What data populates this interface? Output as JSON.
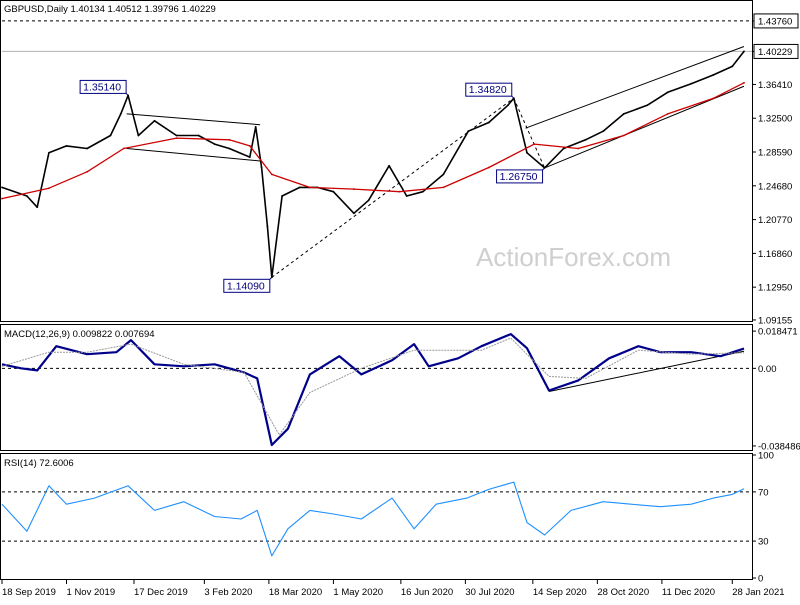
{
  "chart_data": {
    "type": "line",
    "main": {
      "header": "GBPUSD,Daily  1.40134 1.40512 1.39796 1.40229",
      "symbol": "GBPUSD",
      "timeframe": "Daily",
      "ohlc": [
        1.40134,
        1.40512,
        1.39796,
        1.40229
      ],
      "ylim": [
        1.0915,
        1.4595
      ],
      "y_ticks": [
        "1.43760",
        "1.40229",
        "1.36410",
        "1.32500",
        "1.28590",
        "1.24680",
        "1.20770",
        "1.16860",
        "1.12950",
        "1.09155"
      ],
      "current_price": "1.40229",
      "resistance_level": "1.43760",
      "series": [
        {
          "name": "",
          "color": "#000000",
          "x": [
            "2019-09-18",
            "2019-10-05",
            "2019-10-12",
            "2019-10-20",
            "2019-11-01",
            "2019-11-15",
            "2019-12-01",
            "2019-12-08",
            "2019-12-13",
            "2019-12-20",
            "2019-12-31",
            "2020-01-15",
            "2020-01-30",
            "2020-02-10",
            "2020-02-20",
            "2020-03-05",
            "2020-03-09",
            "2020-03-13",
            "2020-03-17",
            "2020-03-20",
            "2020-03-27",
            "2020-04-08",
            "2020-04-20",
            "2020-05-01",
            "2020-05-15",
            "2020-05-25",
            "2020-06-08",
            "2020-06-20",
            "2020-07-01",
            "2020-07-15",
            "2020-08-01",
            "2020-08-15",
            "2020-08-28",
            "2020-09-01",
            "2020-09-10",
            "2020-09-22",
            "2020-10-05",
            "2020-10-20",
            "2020-11-01",
            "2020-11-15",
            "2020-12-01",
            "2020-12-15",
            "2020-12-31",
            "2021-01-15",
            "2021-01-28",
            "2021-02-05"
          ],
          "y": [
            1.245,
            1.235,
            1.222,
            1.285,
            1.293,
            1.29,
            1.305,
            1.33,
            1.3514,
            1.305,
            1.322,
            1.305,
            1.305,
            1.295,
            1.29,
            1.28,
            1.315,
            1.268,
            1.2,
            1.1409,
            1.235,
            1.245,
            1.245,
            1.24,
            1.215,
            1.23,
            1.27,
            1.235,
            1.24,
            1.26,
            1.31,
            1.32,
            1.34,
            1.3482,
            1.285,
            1.2675,
            1.29,
            1.3,
            1.31,
            1.33,
            1.34,
            1.355,
            1.365,
            1.375,
            1.385,
            1.4023
          ]
        },
        {
          "name": "",
          "color": "#cc0000",
          "x": [
            "2019-09-18",
            "2019-10-20",
            "2019-11-15",
            "2019-12-10",
            "2020-01-15",
            "2020-02-20",
            "2020-03-05",
            "2020-03-20",
            "2020-04-15",
            "2020-05-15",
            "2020-06-15",
            "2020-07-15",
            "2020-08-15",
            "2020-09-15",
            "2020-10-15",
            "2020-11-15",
            "2020-12-15",
            "2021-01-15",
            "2021-02-05"
          ],
          "y": [
            1.232,
            1.244,
            1.263,
            1.29,
            1.302,
            1.3,
            1.293,
            1.26,
            1.245,
            1.243,
            1.24,
            1.245,
            1.268,
            1.295,
            1.29,
            1.305,
            1.33,
            1.348,
            1.366
          ]
        }
      ],
      "annotations": [
        {
          "text": "1.35140",
          "x": "2019-12-13",
          "y": 1.3514
        },
        {
          "text": "1.14090",
          "x": "2020-03-20",
          "y": 1.1409
        },
        {
          "text": "1.34820",
          "x": "2020-09-01",
          "y": 1.3482
        },
        {
          "text": "1.26750",
          "x": "2020-09-22",
          "y": 1.2675
        }
      ],
      "trendlines": [
        {
          "from": [
            "2019-12-12",
            1.33
          ],
          "to": [
            "2020-03-12",
            1.3175
          ]
        },
        {
          "from": [
            "2019-12-12",
            1.29
          ],
          "to": [
            "2020-03-12",
            1.2755
          ]
        },
        {
          "from": [
            "2020-03-20",
            1.1409
          ],
          "to": [
            "2020-09-01",
            1.3482
          ]
        },
        {
          "from": [
            "2020-09-01",
            1.3482
          ],
          "to": [
            "2020-09-22",
            1.2675
          ]
        },
        {
          "from": [
            "2020-09-09",
            1.3135
          ],
          "to": [
            "2021-02-05",
            1.408
          ]
        },
        {
          "from": [
            "2020-09-22",
            1.2675
          ],
          "to": [
            "2021-02-05",
            1.362
          ]
        }
      ]
    },
    "macd": {
      "header": "MACD(12,26,9) 0.009822 0.007694",
      "params": "12,26,9",
      "macd_value": 0.009822,
      "signal_value": 0.007694,
      "ylim": [
        -0.04,
        0.021
      ],
      "y_ticks": [
        "0.018471",
        "0.00",
        "-0.038486"
      ],
      "series": [
        {
          "name": "",
          "color": "#00008b",
          "x": [
            "2019-09-18",
            "2019-10-01",
            "2019-10-12",
            "2019-10-25",
            "2019-11-15",
            "2019-12-05",
            "2019-12-15",
            "2019-12-31",
            "2020-01-20",
            "2020-02-10",
            "2020-03-01",
            "2020-03-10",
            "2020-03-20",
            "2020-03-31",
            "2020-04-15",
            "2020-05-05",
            "2020-05-20",
            "2020-06-10",
            "2020-06-25",
            "2020-07-05",
            "2020-07-25",
            "2020-08-10",
            "2020-08-30",
            "2020-09-10",
            "2020-09-25",
            "2020-10-15",
            "2020-11-05",
            "2020-11-25",
            "2020-12-10",
            "2020-12-31",
            "2021-01-20",
            "2021-02-05"
          ],
          "y": [
            0.002,
            0.0,
            -0.001,
            0.011,
            0.007,
            0.008,
            0.014,
            0.002,
            0.001,
            0.002,
            -0.002,
            -0.005,
            -0.038,
            -0.03,
            -0.003,
            0.006,
            -0.003,
            0.004,
            0.012,
            0.001,
            0.005,
            0.011,
            0.017,
            0.01,
            -0.011,
            -0.006,
            0.005,
            0.011,
            0.008,
            0.008,
            0.006,
            0.0098
          ]
        },
        {
          "name": "",
          "color": "#999999",
          "x": [
            "2019-09-18",
            "2019-10-20",
            "2019-11-15",
            "2019-12-15",
            "2020-01-20",
            "2020-03-01",
            "2020-03-25",
            "2020-04-15",
            "2020-05-20",
            "2020-06-25",
            "2020-08-10",
            "2020-08-30",
            "2020-09-25",
            "2020-10-20",
            "2020-11-25",
            "2020-12-31",
            "2021-02-05"
          ],
          "y": [
            0.001,
            0.008,
            0.008,
            0.012,
            0.002,
            -0.002,
            -0.033,
            -0.012,
            0.0,
            0.009,
            0.009,
            0.015,
            -0.004,
            -0.005,
            0.009,
            0.007,
            0.0077
          ]
        }
      ],
      "trendlines": [
        {
          "from": [
            "2020-09-25",
            -0.0115
          ],
          "to": [
            "2021-02-05",
            0.0085
          ]
        }
      ]
    },
    "rsi": {
      "header": "RSI(14) 72.6006",
      "period": 14,
      "value": 72.6006,
      "ylim": [
        0,
        100
      ],
      "y_ticks": [
        "100",
        "70",
        "30",
        "0"
      ],
      "levels": [
        70,
        30
      ],
      "series": [
        {
          "name": "",
          "color": "#1e90ff",
          "x": [
            "2019-09-18",
            "2019-10-05",
            "2019-10-20",
            "2019-11-01",
            "2019-11-20",
            "2019-12-13",
            "2019-12-31",
            "2020-01-20",
            "2020-02-10",
            "2020-02-28",
            "2020-03-10",
            "2020-03-20",
            "2020-03-31",
            "2020-04-15",
            "2020-05-01",
            "2020-05-20",
            "2020-06-10",
            "2020-06-25",
            "2020-07-10",
            "2020-07-31",
            "2020-08-15",
            "2020-09-01",
            "2020-09-10",
            "2020-09-22",
            "2020-10-10",
            "2020-11-01",
            "2020-11-20",
            "2020-12-10",
            "2020-12-31",
            "2021-01-15",
            "2021-01-28",
            "2021-02-05"
          ],
          "y": [
            60,
            38,
            75,
            60,
            65,
            75,
            55,
            62,
            50,
            48,
            55,
            18,
            40,
            55,
            52,
            48,
            65,
            40,
            60,
            65,
            72,
            78,
            45,
            35,
            55,
            62,
            60,
            58,
            60,
            65,
            68,
            72.6
          ]
        }
      ]
    },
    "x_ticks": [
      "18 Sep 2019",
      "1 Nov 2019",
      "17 Dec 2019",
      "3 Feb 2020",
      "18 Mar 2020",
      "1 May 2020",
      "16 Jun 2020",
      "30 Jul 2020",
      "14 Sep 2020",
      "28 Oct 2020",
      "11 Dec 2020",
      "28 Jan 2021"
    ],
    "watermark": "ActionForex.com"
  }
}
